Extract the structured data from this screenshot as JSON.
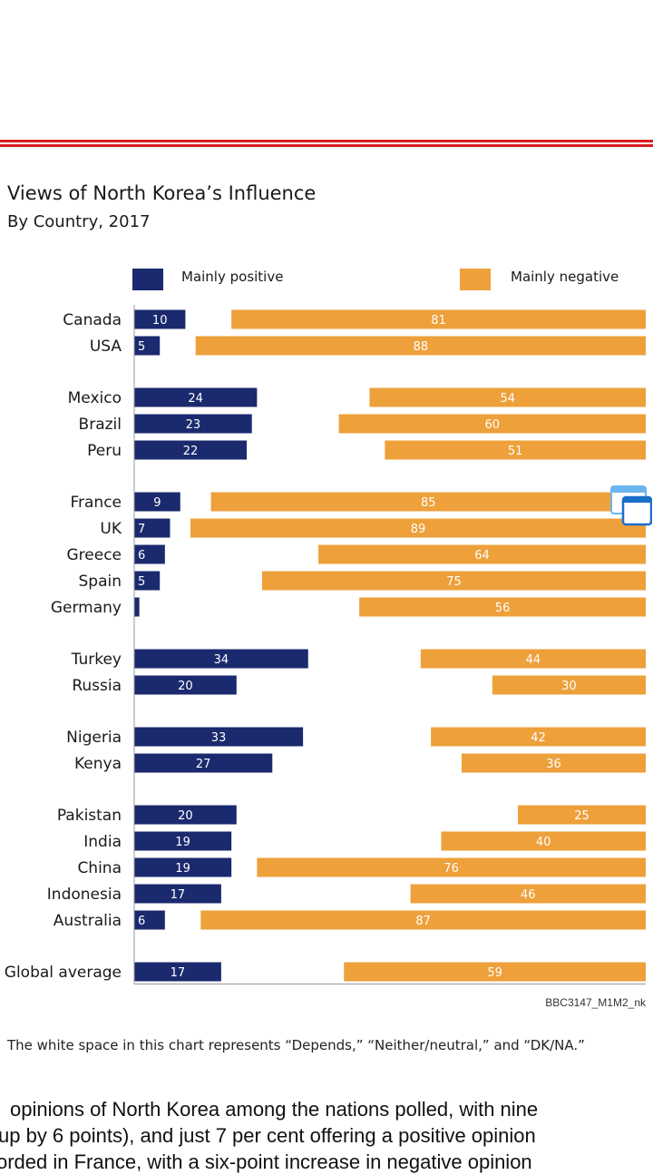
{
  "colors": {
    "positive": "#1b2a6e",
    "negative": "#eea03b",
    "rule": "#d81e1e"
  },
  "page": {
    "credit": "BBC3147_M1M2_nk",
    "note": "The white space in this chart represents “Depends,” “Neither/neutral,” and “DK/NA.”",
    "body_lines": [
      "opinions of North Korea among the nations polled, with nine",
      "up by 6 points), and just 7 per cent offering a positive opinion",
      "orded in France, with a six-point increase in negative opinion"
    ],
    "floating_icon": "window-overlay-icon"
  },
  "chart_data": {
    "type": "bar",
    "title": "Views of North Korea’s Influence",
    "subtitle": "By Country, 2017",
    "legend": {
      "placement": "top",
      "entries": [
        "Mainly positive",
        "Mainly negative"
      ]
    },
    "xlim": [
      0,
      100
    ],
    "grid": false,
    "categories": [
      "Canada",
      "USA",
      "Mexico",
      "Brazil",
      "Peru",
      "France",
      "UK",
      "Greece",
      "Spain",
      "Germany",
      "Turkey",
      "Russia",
      "Nigeria",
      "Kenya",
      "Pakistan",
      "India",
      "China",
      "Indonesia",
      "Australia",
      "Global average"
    ],
    "groups": [
      2,
      3,
      5,
      2,
      2,
      5,
      1
    ],
    "series": [
      {
        "name": "Mainly positive",
        "values": [
          10,
          5,
          24,
          23,
          22,
          9,
          7,
          6,
          5,
          1,
          34,
          20,
          33,
          27,
          20,
          19,
          19,
          17,
          6,
          17
        ],
        "labels": [
          "10",
          "5",
          "24",
          "23",
          "22",
          "9",
          "7",
          "6",
          "5",
          "",
          "34",
          "20",
          "33",
          "27",
          "20",
          "19",
          "19",
          "17",
          "6",
          "17"
        ]
      },
      {
        "name": "Mainly negative",
        "values": [
          81,
          88,
          54,
          60,
          51,
          85,
          89,
          64,
          75,
          56,
          44,
          30,
          42,
          36,
          25,
          40,
          76,
          46,
          87,
          59
        ],
        "labels": [
          "81",
          "88",
          "54",
          "60",
          "51",
          "85",
          "89",
          "64",
          "75",
          "56",
          "44",
          "30",
          "42",
          "36",
          "25",
          "40",
          "76",
          "46",
          "87",
          "59"
        ]
      }
    ]
  }
}
